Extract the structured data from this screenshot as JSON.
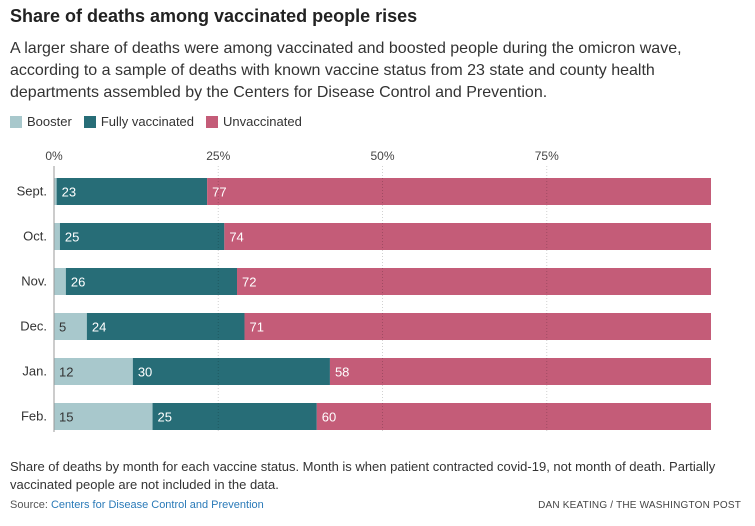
{
  "header": {
    "title": "Share of deaths among vaccinated people rises",
    "subtitle": "A larger share of deaths were among vaccinated and boosted people during the omicron wave, according to a sample of deaths with known vaccine status from 23 state and county health departments assembled by the Centers for Disease Control and Prevention."
  },
  "legend": [
    {
      "label": "Booster",
      "color": "#a8c8cc"
    },
    {
      "label": "Fully vaccinated",
      "color": "#276d77"
    },
    {
      "label": "Unvaccinated",
      "color": "#c45c78"
    }
  ],
  "chart_data": {
    "type": "bar",
    "orientation": "horizontal",
    "stacked": true,
    "categories": [
      "Sept.",
      "Oct.",
      "Nov.",
      "Dec.",
      "Jan.",
      "Feb."
    ],
    "series": [
      {
        "name": "Booster",
        "values": [
          0.4,
          0.9,
          1.8,
          5,
          12,
          15
        ],
        "labels": [
          "",
          "",
          "",
          "5",
          "12",
          "15"
        ],
        "color": "#a8c8cc",
        "label_color": "#333333"
      },
      {
        "name": "Fully vaccinated",
        "values": [
          23,
          25,
          26,
          24,
          30,
          25
        ],
        "labels": [
          "23",
          "25",
          "26",
          "24",
          "30",
          "25"
        ],
        "color": "#276d77",
        "label_color": "#ffffff"
      },
      {
        "name": "Unvaccinated",
        "values": [
          77,
          74,
          72,
          71,
          58,
          60
        ],
        "labels": [
          "77",
          "74",
          "72",
          "71",
          "58",
          "60"
        ],
        "color": "#c45c78",
        "label_color": "#ffffff"
      }
    ],
    "xlim": [
      0,
      100
    ],
    "xticks": [
      0,
      25,
      50,
      75
    ],
    "xtick_labels": [
      "0%",
      "25%",
      "50%",
      "75%"
    ],
    "grid": true
  },
  "footer": {
    "note": "Share of deaths by month for each vaccine status. Month is when patient contracted covid-19, not month of death. Partially vaccinated people are not included in the data.",
    "source_label": "Source:",
    "source_link": "Centers for Disease Control and Prevention",
    "credit": "DAN KEATING / THE WASHINGTON POST"
  }
}
